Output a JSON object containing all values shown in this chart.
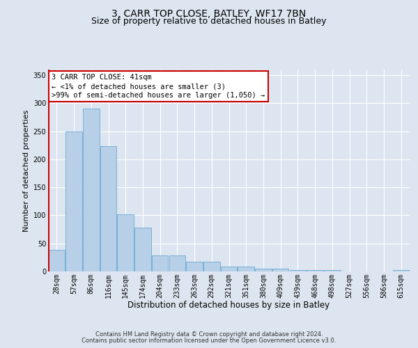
{
  "title1": "3, CARR TOP CLOSE, BATLEY, WF17 7BN",
  "title2": "Size of property relative to detached houses in Batley",
  "xlabel": "Distribution of detached houses by size in Batley",
  "ylabel": "Number of detached properties",
  "categories": [
    "28sqm",
    "57sqm",
    "86sqm",
    "116sqm",
    "145sqm",
    "174sqm",
    "204sqm",
    "233sqm",
    "263sqm",
    "292sqm",
    "321sqm",
    "351sqm",
    "380sqm",
    "409sqm",
    "439sqm",
    "468sqm",
    "498sqm",
    "527sqm",
    "556sqm",
    "586sqm",
    "615sqm"
  ],
  "values": [
    38,
    250,
    291,
    224,
    102,
    78,
    29,
    29,
    18,
    18,
    9,
    9,
    5,
    5,
    3,
    3,
    2,
    0,
    0,
    0,
    3
  ],
  "bar_color": "#b8cfe8",
  "bar_edge_color": "#6aaad4",
  "highlight_edge_color": "#cc0000",
  "annotation_line1": "3 CARR TOP CLOSE: 41sqm",
  "annotation_line2": "← <1% of detached houses are smaller (3)",
  "annotation_line3": ">99% of semi-detached houses are larger (1,050) →",
  "ylim": [
    0,
    360
  ],
  "yticks": [
    0,
    50,
    100,
    150,
    200,
    250,
    300,
    350
  ],
  "footer1": "Contains HM Land Registry data © Crown copyright and database right 2024.",
  "footer2": "Contains public sector information licensed under the Open Government Licence v3.0.",
  "bg_color": "#dde6f0",
  "grid_color": "white",
  "title1_fontsize": 10,
  "title2_fontsize": 9,
  "xlabel_fontsize": 8.5,
  "ylabel_fontsize": 8,
  "tick_fontsize": 7,
  "annotation_fontsize": 7.5,
  "footer_fontsize": 6
}
